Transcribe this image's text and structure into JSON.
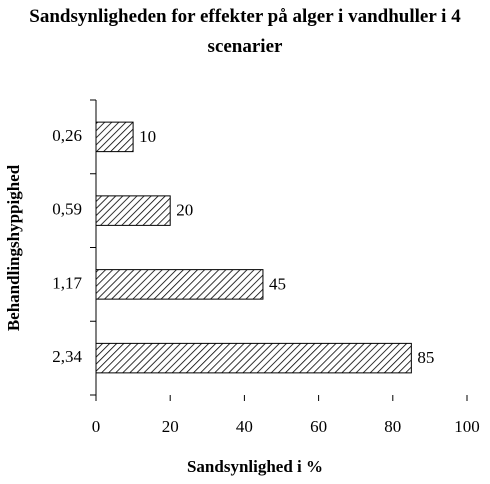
{
  "chart_data": {
    "type": "barh",
    "title": "Sandsynligheden for effekter på alger i vandhuller i 4 scenarier",
    "xlabel": "Sandsynlighed i %",
    "ylabel": "Behandlingshyppighed",
    "categories": [
      "0,26",
      "0,59",
      "1,17",
      "2,34"
    ],
    "values": [
      10,
      20,
      45,
      85
    ],
    "color": "#000000",
    "xlim": [
      0,
      100
    ],
    "xticks": [
      0,
      20,
      40,
      60,
      80,
      100
    ]
  }
}
